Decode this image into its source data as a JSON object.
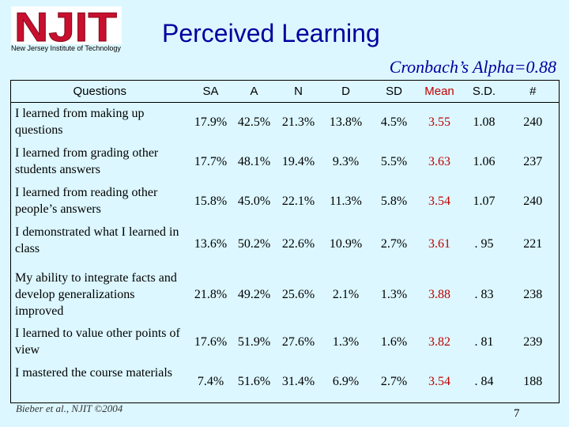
{
  "header": {
    "logo_text": "NJIT",
    "logo_caption": "New Jersey Institute of Technology",
    "title": "Perceived Learning",
    "subtitle": "Cronbach’s Alpha=0.88"
  },
  "table": {
    "headers": [
      "Questions",
      "SA",
      "A",
      "N",
      "D",
      "SD",
      "Mean",
      "S.D.",
      "#"
    ],
    "rows": [
      [
        "I learned from making up questions",
        "17.9%",
        "42.5%",
        "21.3%",
        "13.8%",
        "4.5%",
        "3.55",
        "1.08",
        "240"
      ],
      [
        "I learned from grading other students answers",
        "17.7%",
        "48.1%",
        "19.4%",
        "9.3%",
        "5.5%",
        "3.63",
        "1.06",
        "237"
      ],
      [
        "I learned from reading other people’s answers",
        "15.8%",
        "45.0%",
        "22.1%",
        "11.3%",
        "5.8%",
        "3.54",
        "1.07",
        "240"
      ],
      [
        "I demonstrated what I learned in class",
        "13.6%",
        "50.2%",
        "22.6%",
        "10.9%",
        "2.7%",
        "3.61",
        ". 95",
        "221"
      ],
      [
        "My ability to integrate facts and develop generalizations improved",
        "21.8%",
        "49.2%",
        "25.6%",
        "2.1%",
        "1.3%",
        "3.88",
        ". 83",
        "238"
      ],
      [
        "I learned to value other points of view",
        "17.6%",
        "51.9%",
        "27.6%",
        "1.3%",
        "1.6%",
        "3.82",
        ". 81",
        "239"
      ],
      [
        "I mastered the course materials",
        "7.4%",
        "51.6%",
        "31.4%",
        "6.9%",
        "2.7%",
        "3.54",
        ". 84",
        "188"
      ]
    ]
  },
  "footer": {
    "citation": "Bieber et al., NJIT ©2004",
    "page_number": "7"
  },
  "colors": {
    "background": "#dcf7ff",
    "title": "#0000a0",
    "mean": "#c00000",
    "logo": "#c8102e"
  }
}
